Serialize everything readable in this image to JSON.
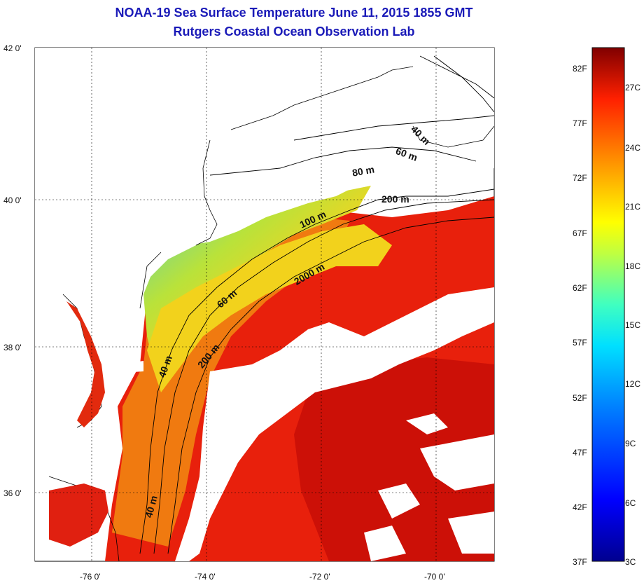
{
  "title": "NOAA-19 Sea Surface Temperature June 11, 2015 1855 GMT",
  "subtitle": "Rutgers Coastal Ocean Observation Lab",
  "map": {
    "lat_labels": [
      "42 0'",
      "40 0'",
      "38 0'",
      "36 0'"
    ],
    "lon_labels": [
      "-76 0'",
      "-74 0'",
      "-72 0'",
      "-70 0'"
    ],
    "contour_labels": [
      "40 m",
      "60 m",
      "80 m",
      "200 m",
      "100 m",
      "2000 m",
      "60 m",
      "200 m",
      "40 m",
      "40 m"
    ]
  },
  "colorbar": {
    "fahrenheit_labels": [
      "82F",
      "77F",
      "72F",
      "67F",
      "62F",
      "57F",
      "52F",
      "47F",
      "42F",
      "37F"
    ],
    "celsius_labels": [
      "27C",
      "24C",
      "21C",
      "18C",
      "15C",
      "12C",
      "9C",
      "6C",
      "3C"
    ]
  },
  "colors": {
    "title": "#1a1ab8",
    "warm": "#e8200c",
    "hot": "#c40c06",
    "mid": "#f07a10",
    "yellow": "#f2d21c",
    "cool": "#52d2c2",
    "cloud": "#ffffff"
  }
}
